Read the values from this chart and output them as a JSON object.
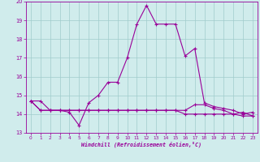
{
  "xlabel": "Windchill (Refroidissement éolien,°C)",
  "background_color": "#d0ecec",
  "grid_color": "#a0cccc",
  "line_color": "#990099",
  "xlim": [
    -0.5,
    23.5
  ],
  "ylim": [
    13,
    20
  ],
  "xticks": [
    0,
    1,
    2,
    3,
    4,
    5,
    6,
    7,
    8,
    9,
    10,
    11,
    12,
    13,
    14,
    15,
    16,
    17,
    18,
    19,
    20,
    21,
    22,
    23
  ],
  "yticks": [
    13,
    14,
    15,
    16,
    17,
    18,
    19,
    20
  ],
  "series": [
    {
      "x": [
        0,
        1,
        2,
        3,
        4,
        5,
        6,
        7,
        8,
        9,
        10,
        11,
        12,
        13,
        14,
        15,
        16,
        17,
        18,
        19,
        20,
        21,
        22,
        23
      ],
      "y": [
        14.7,
        14.7,
        14.2,
        14.2,
        14.1,
        13.4,
        14.6,
        15.0,
        15.7,
        15.7,
        17.0,
        18.8,
        19.8,
        18.8,
        18.8,
        18.8,
        17.1,
        17.5,
        14.6,
        14.4,
        14.3,
        14.2,
        14.0,
        14.1
      ]
    },
    {
      "x": [
        0,
        1,
        2,
        3,
        4,
        5,
        6,
        7,
        8,
        9,
        10,
        11,
        12,
        13,
        14,
        15,
        16,
        17,
        18,
        19,
        20,
        21,
        22,
        23
      ],
      "y": [
        14.7,
        14.2,
        14.2,
        14.2,
        14.2,
        14.2,
        14.2,
        14.2,
        14.2,
        14.2,
        14.2,
        14.2,
        14.2,
        14.2,
        14.2,
        14.2,
        14.2,
        14.5,
        14.5,
        14.3,
        14.2,
        14.0,
        14.1,
        13.9
      ]
    },
    {
      "x": [
        0,
        1,
        2,
        3,
        4,
        5,
        6,
        7,
        8,
        9,
        10,
        11,
        12,
        13,
        14,
        15,
        16,
        17,
        18,
        19,
        20,
        21,
        22,
        23
      ],
      "y": [
        14.7,
        14.2,
        14.2,
        14.2,
        14.2,
        14.2,
        14.2,
        14.2,
        14.2,
        14.2,
        14.2,
        14.2,
        14.2,
        14.2,
        14.2,
        14.2,
        14.0,
        14.0,
        14.0,
        14.0,
        14.0,
        14.0,
        13.9,
        13.9
      ]
    }
  ]
}
